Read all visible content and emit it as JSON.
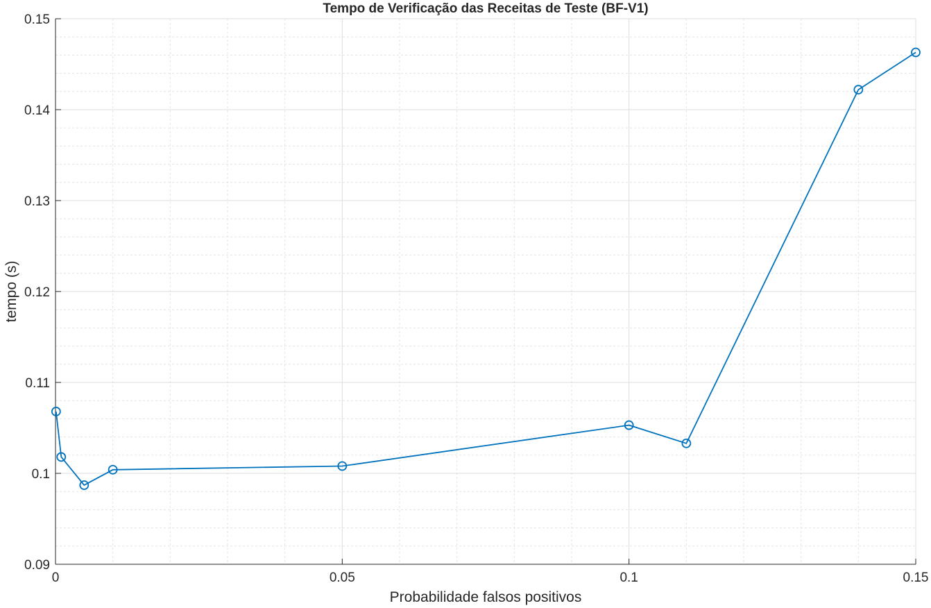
{
  "chart_data": {
    "type": "line",
    "title": "Tempo de Verificação das Receitas de Teste (BF-V1)",
    "xlabel": "Probabilidade falsos positivos",
    "ylabel": "tempo (s)",
    "xlim": [
      0,
      0.15
    ],
    "ylim": [
      0.09,
      0.15
    ],
    "xticks": [
      0,
      0.05,
      0.1,
      0.15
    ],
    "xtick_labels": [
      "0",
      "0.05",
      "0.1",
      "0.15"
    ],
    "yticks": [
      0.09,
      0.1,
      0.11,
      0.12,
      0.13,
      0.14,
      0.15
    ],
    "ytick_labels": [
      "0.09",
      "0.1",
      "0.11",
      "0.12",
      "0.13",
      "0.14",
      "0.15"
    ],
    "x_minor_step": 0.01,
    "y_minor_step": 0.002,
    "grid": true,
    "minor_grid": true,
    "marker": "circle",
    "color": "#0072bd",
    "series": [
      {
        "x": [
          0.0001,
          0.001,
          0.005,
          0.01,
          0.05,
          0.1,
          0.11,
          0.14,
          0.15
        ],
        "y": [
          0.1068,
          0.1018,
          0.0987,
          0.1004,
          0.1008,
          0.1053,
          0.1033,
          0.1422,
          0.1463
        ]
      }
    ]
  }
}
